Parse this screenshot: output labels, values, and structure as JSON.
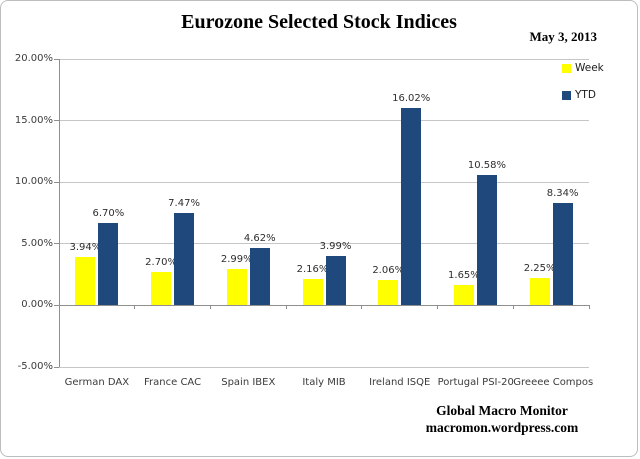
{
  "title": "Eurozone Selected Stock Indices",
  "date": "May 3, 2013",
  "footer": {
    "line1": "Global Macro Monitor",
    "line2": "macromon.wordpress.com"
  },
  "colors": {
    "week": "#FFFF00",
    "ytd": "#1F497D",
    "gridline": "#C6C6C6",
    "axis": "#8F8F8F",
    "frame_border": "#BDBDBD",
    "label_text": "#3B3B3B"
  },
  "chart_data": {
    "type": "bar",
    "title": "Eurozone Selected Stock Indices",
    "categories": [
      "German DAX",
      "France CAC",
      "Spain IBEX",
      "Italy MIB",
      "Ireland ISQE",
      "Portugal PSI-20",
      "Greeee Compos"
    ],
    "series": [
      {
        "name": "Week",
        "color": "#FFFF00",
        "values": [
          3.94,
          2.7,
          2.99,
          2.16,
          2.06,
          1.65,
          2.25
        ]
      },
      {
        "name": "YTD",
        "color": "#1F497D",
        "values": [
          6.7,
          7.47,
          4.62,
          3.99,
          16.02,
          10.58,
          8.34
        ]
      }
    ],
    "data_labels": [
      [
        "3.94%",
        "2.70%",
        "2.99%",
        "2.16%",
        "2.06%",
        "1.65%",
        "2.25%"
      ],
      [
        "6.70%",
        "7.47%",
        "4.62%",
        "3.99%",
        "16.02%",
        "10.58%",
        "8.34%"
      ]
    ],
    "ylim": [
      -5,
      20
    ],
    "y_ticks": [
      "20.00%",
      "15.00%",
      "10.00%",
      "5.00%",
      "0.00%",
      "-5.00%"
    ],
    "y_tick_values": [
      20,
      15,
      10,
      5,
      0,
      -5
    ],
    "grid": true,
    "legend_position": "top-right",
    "xlabel": "",
    "ylabel": ""
  }
}
